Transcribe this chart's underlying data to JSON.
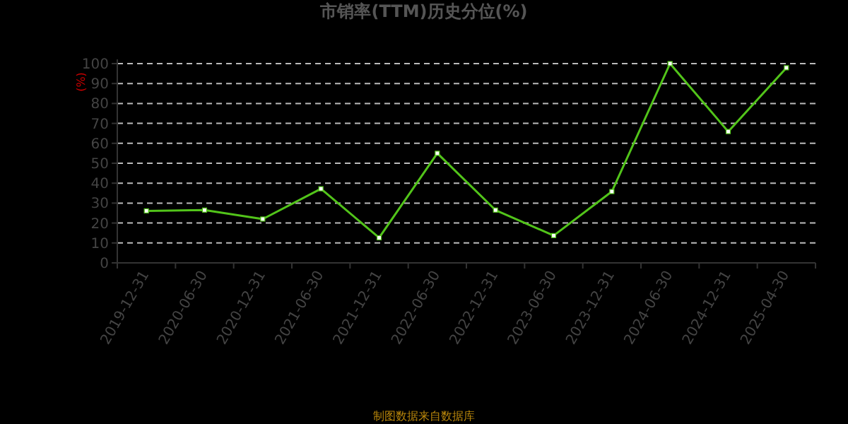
{
  "chart_data": {
    "type": "line",
    "title": "市销率(TTM)历史分位(%)",
    "ylabel": "(%)",
    "categories": [
      "2019-12-31",
      "2020-06-30",
      "2020-12-31",
      "2021-06-30",
      "2021-12-31",
      "2022-06-30",
      "2022-12-31",
      "2023-06-30",
      "2023-12-31",
      "2024-06-30",
      "2024-12-31",
      "2025-04-30"
    ],
    "series": [
      {
        "color": "#52c41a",
        "values": [
          26.1,
          26.5,
          22,
          37.2,
          12.6,
          55,
          26.5,
          13.7,
          35.8,
          100,
          65.9,
          97.9
        ]
      }
    ],
    "ylim": [
      0,
      100
    ],
    "yticks": [
      0,
      10,
      20,
      30,
      40,
      50,
      60,
      70,
      80,
      90,
      100
    ],
    "grid": "y",
    "marker": "square",
    "line_style": "solid",
    "annotations": [
      "制图数据来自数据库"
    ]
  }
}
